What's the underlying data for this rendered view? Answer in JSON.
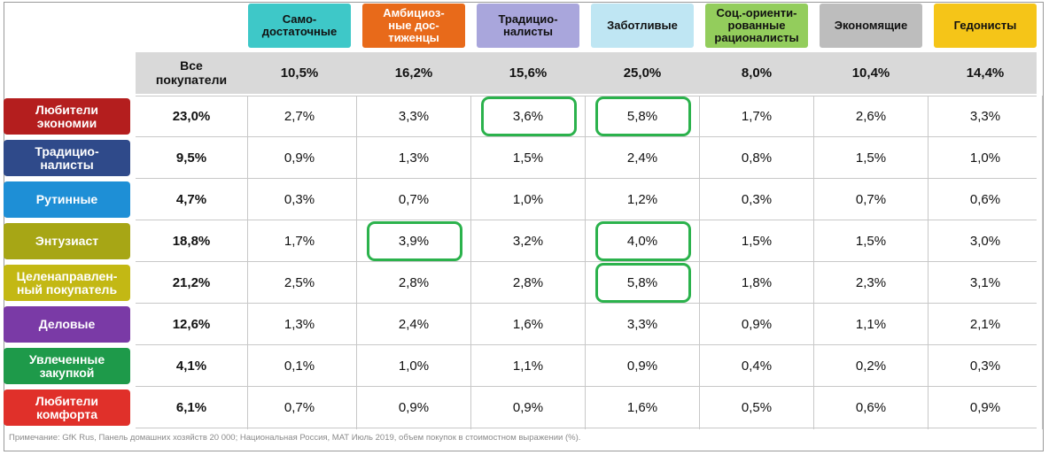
{
  "chart_data": {
    "type": "table",
    "segments": [
      {
        "label": "Само-\nдостаточные",
        "color": "#3ec8c8",
        "share": "10,5%"
      },
      {
        "label": "Амбициоз-\nные дос-\nтиженцы",
        "color": "#e86a1a",
        "share": "16,2%"
      },
      {
        "label": "Традицио-\nналисты",
        "color": "#a9a6dc",
        "share": "15,6%"
      },
      {
        "label": "Заботливые",
        "color": "#bfe6f3",
        "share": "25,0%"
      },
      {
        "label": "Соц.-ориенти-\nрованные\nрационалисты",
        "color": "#93cd5c",
        "share": "8,0%"
      },
      {
        "label": "Экономящие",
        "color": "#bdbdbd",
        "share": "10,4%"
      },
      {
        "label": "Гедонисты",
        "color": "#f5c518",
        "share": "14,4%"
      }
    ],
    "all_buyers_label": "Все\nпокупатели",
    "rows": [
      {
        "label": "Любители\nэкономии",
        "color": "#b41e1e",
        "all": "23,0%",
        "values": [
          "2,7%",
          "3,3%",
          "3,6%",
          "5,8%",
          "1,7%",
          "2,6%",
          "3,3%"
        ]
      },
      {
        "label": "Традицио-\nналисты",
        "color": "#2f4a8a",
        "all": "9,5%",
        "values": [
          "0,9%",
          "1,3%",
          "1,5%",
          "2,4%",
          "0,8%",
          "1,5%",
          "1,0%"
        ]
      },
      {
        "label": "Рутинные",
        "color": "#1e8fd6",
        "all": "4,7%",
        "values": [
          "0,3%",
          "0,7%",
          "1,0%",
          "1,2%",
          "0,3%",
          "0,7%",
          "0,6%"
        ]
      },
      {
        "label": "Энтузиаст",
        "color": "#a7a615",
        "all": "18,8%",
        "values": [
          "1,7%",
          "3,9%",
          "3,2%",
          "4,0%",
          "1,5%",
          "1,5%",
          "3,0%"
        ]
      },
      {
        "label": "Целенаправлен-\nный покупатель",
        "color": "#c3b814",
        "all": "21,2%",
        "values": [
          "2,5%",
          "2,8%",
          "2,8%",
          "5,8%",
          "1,8%",
          "2,3%",
          "3,1%"
        ]
      },
      {
        "label": "Деловые",
        "color": "#7a3aa6",
        "all": "12,6%",
        "values": [
          "1,3%",
          "2,4%",
          "1,6%",
          "3,3%",
          "0,9%",
          "1,1%",
          "2,1%"
        ]
      },
      {
        "label": "Увлеченные\nзакупкой",
        "color": "#1e9a4a",
        "all": "4,1%",
        "values": [
          "0,1%",
          "1,0%",
          "1,1%",
          "0,9%",
          "0,4%",
          "0,2%",
          "0,3%"
        ]
      },
      {
        "label": "Любители\nкомфорта",
        "color": "#e0302a",
        "all": "6,1%",
        "values": [
          "0,7%",
          "0,9%",
          "0,9%",
          "1,6%",
          "0,5%",
          "0,6%",
          "0,9%"
        ]
      }
    ],
    "highlighted_cells": [
      {
        "row": 0,
        "col": 2
      },
      {
        "row": 0,
        "col": 3
      },
      {
        "row": 3,
        "col": 1
      },
      {
        "row": 3,
        "col": 3
      },
      {
        "row": 4,
        "col": 3
      }
    ],
    "highlight_color": "#2bb24c",
    "note": "Примечание: GfK Rus, Панель домашних хозяйств 20 000; Национальная Россия, МАТ Июль 2019, объем покупок в стоимостном выражении  (%)."
  }
}
